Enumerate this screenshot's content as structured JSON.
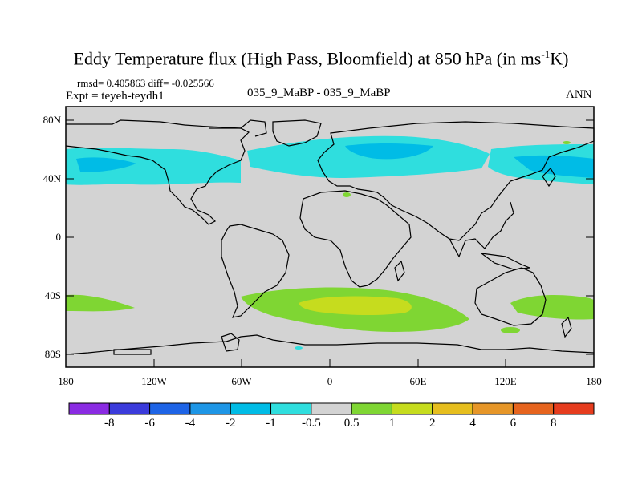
{
  "title": "Eddy Temperature flux (High Pass, Bloomfield) at 850 hPa (in ms",
  "title_sup": "-1",
  "title_end": "K)",
  "stats": "rmsd= 0.405863 diff= -0.025566",
  "expt": "Expt = teyeh-teydh1",
  "case": "035_9_MaBP - 035_9_MaBP",
  "season": "ANN",
  "lat_labels": [
    "80N",
    "40N",
    "0",
    "40S",
    "80S"
  ],
  "lon_labels": [
    "180",
    "120W",
    "60W",
    "0",
    "60E",
    "120E",
    "180"
  ],
  "colorbar": {
    "colors": [
      "#8a2be2",
      "#3b3bdb",
      "#1e64e6",
      "#1e96e6",
      "#00bce6",
      "#2fdede",
      "#d3d3d3",
      "#7fd633",
      "#c6dc1e",
      "#e6be1e",
      "#e69628",
      "#e6641e",
      "#e63c1e"
    ],
    "labels": [
      "-8",
      "-6",
      "-4",
      "-2",
      "-1",
      "-0.5",
      "0.5",
      "1",
      "2",
      "4",
      "6",
      "8"
    ]
  },
  "fields": {
    "land_color": "#d3d3d3",
    "positive_light": "#7fd633",
    "positive_strong": "#c6dc1e",
    "negative_light": "#2fdede",
    "negative_strong": "#00bce6"
  }
}
